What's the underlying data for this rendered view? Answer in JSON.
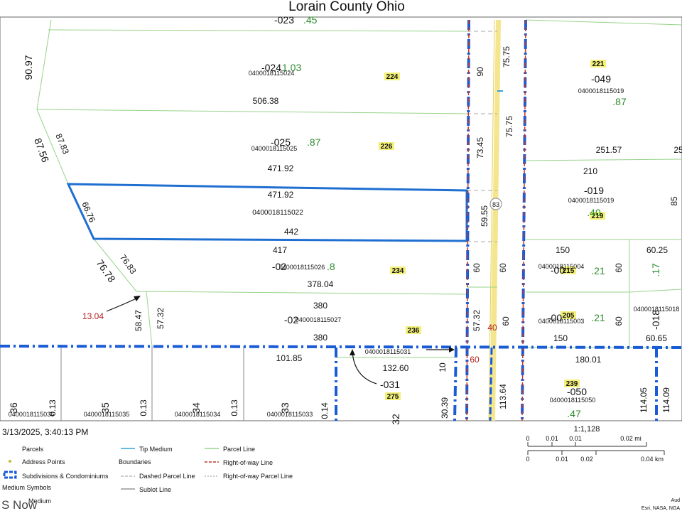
{
  "title": "Lorain County Ohio",
  "timestamp": "3/13/2025, 3:40:13 PM",
  "watermark": "S Now",
  "route_shield": "83",
  "colors": {
    "parcel_line": "#8fcf7f",
    "right_of_way": "#c0392b",
    "subdivision": "#1a5bd6",
    "highlight_parcel": "#1f6fd1",
    "road": "#f2e08a",
    "acreage_green": "#2e8b2e",
    "address_yellow": "#f3f07a",
    "frontage_red": "#b22222"
  },
  "parcels": [
    {
      "id": "-024",
      "pin": "0400018115024",
      "acres": "1.03",
      "address": "224"
    },
    {
      "id": "-025",
      "pin": "0400018115025",
      "acres": ".87",
      "address": "226"
    },
    {
      "id": "",
      "pin": "0400018115022",
      "acres": "",
      "address": ""
    },
    {
      "id": "-02",
      "pin": "0400018115026",
      "acres": ".8",
      "address": "234"
    },
    {
      "id": "-02",
      "pin": "0400018115027",
      "acres": "",
      "address": "236"
    },
    {
      "id": "-049",
      "pin": "0400018115019",
      "acres": ".87",
      "address": "221"
    },
    {
      "id": "-019",
      "pin": "0400018115019",
      "acres": ".40",
      "address": "219"
    },
    {
      "id": "-00",
      "pin": "0400018115004",
      "acres": ".21",
      "address": "215"
    },
    {
      "id": "-00",
      "pin": "0400018115003",
      "acres": ".21",
      "address": "205"
    },
    {
      "id": "-050",
      "pin": "0400018115050",
      "acres": ".47",
      "address": "239"
    },
    {
      "id": "-031",
      "pin": "0400018115031",
      "acres": "",
      "address": "275"
    },
    {
      "id": "-018",
      "pin": "0400018115018",
      "acres": ".17",
      "address": ""
    },
    {
      "id": "-023",
      "pin": "",
      "acres": ".45",
      "address": ""
    }
  ],
  "dimensions": [
    "90.97",
    "87.56",
    "87.83",
    "506.38",
    "471.92",
    "471.92",
    "66.76",
    "442",
    "417",
    "76.78",
    "76.83",
    "378.04",
    "380",
    "380",
    "13.04",
    "58.47",
    "57.32",
    "101.85",
    "132.60",
    "10",
    "90",
    "75.75",
    "75.75",
    "73.45",
    "59.55",
    "60",
    "60",
    "57.32",
    "60",
    "40",
    "60",
    "113.64",
    "30.39",
    "251.57",
    "25",
    "210",
    "85",
    "150",
    "60.25",
    "60",
    "150",
    "60",
    "60.65",
    "180.01",
    "114.05",
    "114.09",
    "0.13",
    "0.13",
    "0.14",
    "0.13",
    "36",
    "35",
    "34",
    "33",
    "32"
  ],
  "bottom_pins": [
    "0400018115036",
    "0400018115035",
    "0400018115034",
    "0400018115033"
  ],
  "scale": {
    "ratio": "1:1,128",
    "mi_ticks": [
      "0",
      "0.01",
      "0.01",
      "0.02 mi"
    ],
    "km_ticks": [
      "0",
      "0.01",
      "0.02",
      "0.04 km"
    ]
  },
  "legend": {
    "parcels": "Parcels",
    "address_points": "Address Points",
    "subdivisions": "Subdivisions & Condominiums",
    "medium_symbols": "Medium Symbols",
    "tip_medium": "Tip Medium",
    "boundaries": "Boundaries",
    "dashed_parcel_line": "Dashed Parcel Line",
    "sublot_line": "Sublot Line",
    "parcel_line": "Parcel Line",
    "right_of_way_line": "Right-of-way Line",
    "right_of_way_parcel_line": "Right-of-way Parcel Line",
    "partial_medium": "Medium"
  },
  "attribution": [
    "Aud",
    "Esri, NASA, NGA"
  ]
}
